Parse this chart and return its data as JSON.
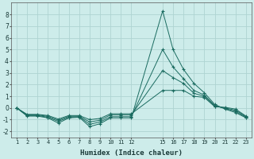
{
  "xlabel": "Humidex (Indice chaleur)",
  "bg_color": "#cdecea",
  "grid_color": "#aed4d2",
  "line_color": "#1a6b60",
  "x": [
    1,
    2,
    3,
    4,
    5,
    6,
    7,
    8,
    9,
    10,
    11,
    12,
    15,
    16,
    17,
    18,
    19,
    20,
    21,
    22,
    23
  ],
  "series": [
    [
      0.0,
      -0.7,
      -0.7,
      -0.85,
      -1.3,
      -0.85,
      -0.8,
      -1.6,
      -1.35,
      -0.85,
      -0.85,
      -0.85,
      8.3,
      5.0,
      3.3,
      2.1,
      1.3,
      0.3,
      -0.1,
      -0.4,
      -0.85
    ],
    [
      0.0,
      -0.65,
      -0.65,
      -0.8,
      -1.15,
      -0.8,
      -0.75,
      -1.4,
      -1.2,
      -0.75,
      -0.75,
      -0.75,
      5.0,
      3.5,
      2.5,
      1.5,
      1.1,
      0.2,
      -0.05,
      -0.3,
      -0.8
    ],
    [
      0.0,
      -0.6,
      -0.6,
      -0.72,
      -1.05,
      -0.72,
      -0.7,
      -1.2,
      -1.05,
      -0.6,
      -0.6,
      -0.6,
      3.2,
      2.6,
      2.1,
      1.25,
      1.0,
      0.15,
      0.0,
      -0.2,
      -0.75
    ],
    [
      0.0,
      -0.55,
      -0.55,
      -0.65,
      -0.95,
      -0.65,
      -0.65,
      -1.0,
      -0.9,
      -0.5,
      -0.5,
      -0.5,
      1.5,
      1.5,
      1.5,
      1.0,
      0.9,
      0.1,
      0.05,
      -0.1,
      -0.7
    ]
  ],
  "ylim": [
    -2.5,
    9.0
  ],
  "yticks": [
    -2,
    -1,
    0,
    1,
    2,
    3,
    4,
    5,
    6,
    7,
    8
  ],
  "xtick_labels": [
    "1",
    "2",
    "3",
    "4",
    "5",
    "6",
    "7",
    "8",
    "9",
    "10",
    "11",
    "12",
    "15",
    "16",
    "17",
    "18",
    "19",
    "20",
    "21",
    "22",
    "23"
  ]
}
